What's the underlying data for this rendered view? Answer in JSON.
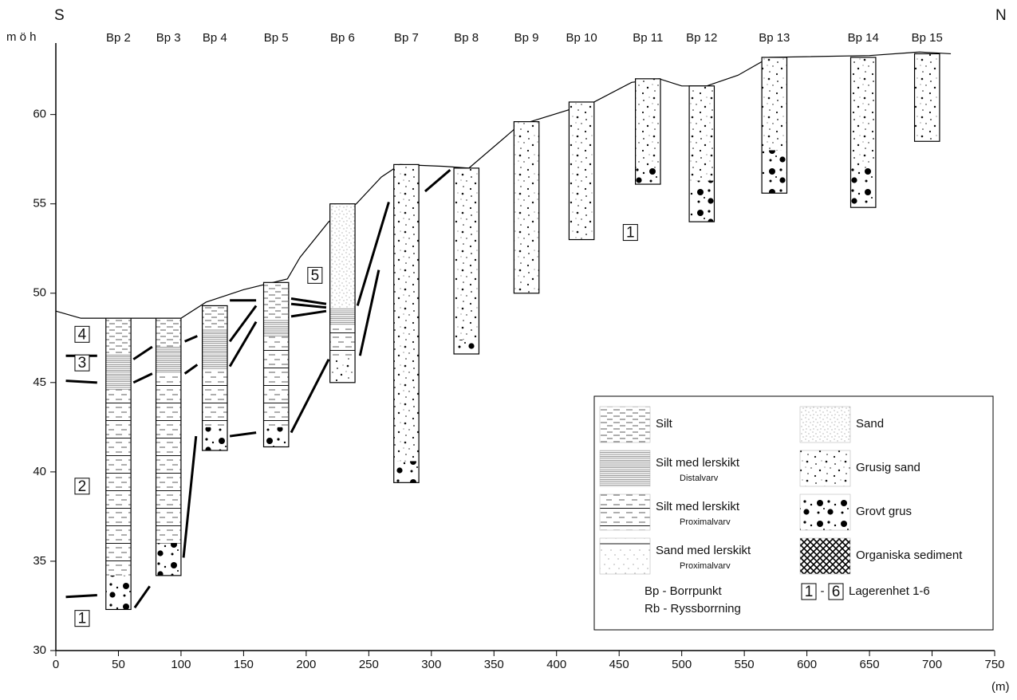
{
  "chart_data": {
    "type": "section",
    "y_label": "m ö h",
    "x_label": "(m)",
    "left_label": "S",
    "right_label": "N",
    "xlim": [
      0,
      750
    ],
    "xticks": [
      0,
      50,
      100,
      150,
      200,
      250,
      300,
      350,
      400,
      450,
      500,
      550,
      600,
      650,
      700,
      750
    ],
    "ylim": [
      30,
      64
    ],
    "yticks": [
      30,
      35,
      40,
      45,
      50,
      55,
      60
    ],
    "terrain": {
      "x": [
        0,
        20,
        100,
        120,
        150,
        185,
        195,
        218,
        240,
        260,
        275,
        310,
        330,
        370,
        430,
        460,
        482,
        500,
        520,
        545,
        570,
        650,
        690,
        715
      ],
      "y": [
        49,
        48.6,
        48.6,
        49.5,
        50.2,
        50.8,
        52,
        54,
        55,
        56.5,
        57.2,
        57.1,
        57,
        59.4,
        60.7,
        61.8,
        62,
        61.6,
        61.6,
        62.2,
        63.2,
        63.3,
        63.5,
        63.4
      ]
    },
    "boreholes": [
      {
        "label": "Bp 2",
        "x0": 40,
        "x1": 60,
        "top": 48.6,
        "bottom": 32.3,
        "layers": [
          {
            "top": 48.6,
            "bottom": 46.6,
            "pattern": 0
          },
          {
            "top": 46.6,
            "bottom": 44.6,
            "pattern": 1
          },
          {
            "top": 44.6,
            "bottom": 34.2,
            "pattern": 2
          },
          {
            "top": 34.2,
            "bottom": 32.3,
            "pattern": 6
          }
        ]
      },
      {
        "label": "Bp 3",
        "x0": 80,
        "x1": 100,
        "top": 48.6,
        "bottom": 34.2,
        "layers": [
          {
            "top": 48.6,
            "bottom": 47,
            "pattern": 0
          },
          {
            "top": 47,
            "bottom": 45.5,
            "pattern": 1
          },
          {
            "top": 45.5,
            "bottom": 36,
            "pattern": 2
          },
          {
            "top": 36,
            "bottom": 34.2,
            "pattern": 6
          }
        ]
      },
      {
        "label": "Bp 4",
        "x0": 117,
        "x1": 137,
        "top": 49.3,
        "bottom": 41.2,
        "layers": [
          {
            "top": 49.3,
            "bottom": 48,
            "pattern": 0
          },
          {
            "top": 48,
            "bottom": 45.7,
            "pattern": 1
          },
          {
            "top": 45.7,
            "bottom": 42.5,
            "pattern": 2
          },
          {
            "top": 42.5,
            "bottom": 41.2,
            "pattern": 6
          }
        ]
      },
      {
        "label": "Bp 5",
        "x0": 166,
        "x1": 186,
        "top": 50.6,
        "bottom": 41.4,
        "layers": [
          {
            "top": 50.6,
            "bottom": 48.5,
            "pattern": 0
          },
          {
            "top": 48.5,
            "bottom": 47.6,
            "pattern": 1
          },
          {
            "top": 47.6,
            "bottom": 42.5,
            "pattern": 2
          },
          {
            "top": 42.5,
            "bottom": 41.4,
            "pattern": 6
          }
        ]
      },
      {
        "label": "Bp 6",
        "x0": 219,
        "x1": 239,
        "top": 55,
        "bottom": 45,
        "layers": [
          {
            "top": 55,
            "bottom": 49.2,
            "pattern": 4
          },
          {
            "top": 49.2,
            "bottom": 48.2,
            "pattern": 1
          },
          {
            "top": 48.2,
            "bottom": 46.4,
            "pattern": 2
          },
          {
            "top": 46.4,
            "bottom": 45,
            "pattern": 5
          }
        ]
      },
      {
        "label": "Bp 7",
        "x0": 270,
        "x1": 290,
        "top": 57.2,
        "bottom": 39.4,
        "layers": [
          {
            "top": 57.2,
            "bottom": 40.6,
            "pattern": 5
          },
          {
            "top": 40.6,
            "bottom": 39.4,
            "pattern": 6
          }
        ]
      },
      {
        "label": "Bp 8",
        "x0": 318,
        "x1": 338,
        "top": 57,
        "bottom": 46.6,
        "layers": [
          {
            "top": 57,
            "bottom": 47.4,
            "pattern": 5
          },
          {
            "top": 47.4,
            "bottom": 46.6,
            "pattern": 6
          }
        ]
      },
      {
        "label": "Bp 9",
        "x0": 366,
        "x1": 386,
        "top": 59.6,
        "bottom": 50,
        "layers": [
          {
            "top": 59.6,
            "bottom": 50,
            "pattern": 5
          }
        ]
      },
      {
        "label": "Bp 10",
        "x0": 410,
        "x1": 430,
        "top": 60.7,
        "bottom": 53,
        "layers": [
          {
            "top": 60.7,
            "bottom": 53,
            "pattern": 5
          }
        ]
      },
      {
        "label": "Bp 11",
        "x0": 463,
        "x1": 483,
        "top": 62,
        "bottom": 56.1,
        "layers": [
          {
            "top": 62,
            "bottom": 57,
            "pattern": 5
          },
          {
            "top": 57,
            "bottom": 56.1,
            "pattern": 6
          }
        ]
      },
      {
        "label": "Bp 12",
        "x0": 506,
        "x1": 526,
        "top": 61.6,
        "bottom": 54,
        "layers": [
          {
            "top": 61.6,
            "bottom": 56.3,
            "pattern": 5
          },
          {
            "top": 56.3,
            "bottom": 54,
            "pattern": 6
          }
        ]
      },
      {
        "label": "Bp 13",
        "x0": 564,
        "x1": 584,
        "top": 63.2,
        "bottom": 55.6,
        "layers": [
          {
            "top": 63.2,
            "bottom": 58,
            "pattern": 5
          },
          {
            "top": 58,
            "bottom": 55.6,
            "pattern": 6
          }
        ]
      },
      {
        "label": "Bp 14",
        "x0": 635,
        "x1": 655,
        "top": 63.2,
        "bottom": 54.8,
        "layers": [
          {
            "top": 63.2,
            "bottom": 57,
            "pattern": 5
          },
          {
            "top": 57,
            "bottom": 54.8,
            "pattern": 6
          }
        ]
      },
      {
        "label": "Bp 15",
        "x0": 686,
        "x1": 706,
        "top": 63.4,
        "bottom": 58.5,
        "layers": [
          {
            "top": 63.4,
            "bottom": 58.5,
            "pattern": 5
          }
        ]
      }
    ],
    "correlation_lines": [
      {
        "x": [
          8,
          33
        ],
        "y": [
          46.5,
          46.5
        ]
      },
      {
        "x": [
          8,
          33
        ],
        "y": [
          45.1,
          45
        ]
      },
      {
        "x": [
          8,
          33
        ],
        "y": [
          33,
          33.1
        ]
      },
      {
        "x": [
          62,
          77
        ],
        "y": [
          46.3,
          47
        ]
      },
      {
        "x": [
          62,
          77
        ],
        "y": [
          45,
          45.5
        ]
      },
      {
        "x": [
          63,
          75
        ],
        "y": [
          32.4,
          33.6
        ]
      },
      {
        "x": [
          103,
          113
        ],
        "y": [
          47.3,
          47.6
        ]
      },
      {
        "x": [
          103,
          113
        ],
        "y": [
          45.5,
          46
        ]
      },
      {
        "x": [
          102,
          112
        ],
        "y": [
          35.2,
          42
        ]
      },
      {
        "x": [
          139,
          160
        ],
        "y": [
          45.9,
          48.4
        ]
      },
      {
        "x": [
          139,
          160
        ],
        "y": [
          47.3,
          49.3
        ]
      },
      {
        "x": [
          139,
          160
        ],
        "y": [
          49.6,
          49.6
        ]
      },
      {
        "x": [
          139,
          160
        ],
        "y": [
          42,
          42.2
        ]
      },
      {
        "x": [
          188,
          218
        ],
        "y": [
          42.2,
          46.3
        ]
      },
      {
        "x": [
          188,
          216
        ],
        "y": [
          49.7,
          49.4
        ]
      },
      {
        "x": [
          188,
          216
        ],
        "y": [
          49.4,
          49.2
        ]
      },
      {
        "x": [
          188,
          216
        ],
        "y": [
          48.7,
          49
        ]
      },
      {
        "x": [
          241,
          266
        ],
        "y": [
          49.3,
          55.1
        ]
      },
      {
        "x": [
          243,
          258
        ],
        "y": [
          46.5,
          51.3
        ]
      },
      {
        "x": [
          295,
          315
        ],
        "y": [
          55.7,
          56.9
        ]
      }
    ],
    "unit_labels": [
      {
        "label": "1",
        "x": 459,
        "y": 53.4
      },
      {
        "label": "5",
        "x": 207,
        "y": 51
      },
      {
        "label": "4",
        "x": 21,
        "y": 47.7
      },
      {
        "label": "3",
        "x": 21,
        "y": 46.1
      },
      {
        "label": "2",
        "x": 21,
        "y": 39.2
      },
      {
        "label": "1",
        "x": 21,
        "y": 31.8
      }
    ],
    "legend": {
      "items": [
        {
          "label": "Silt"
        },
        {
          "label": "Silt  med lerskikt",
          "note": "Distalvarv"
        },
        {
          "label": "Silt  med lerskikt",
          "note": "Proximalvarv"
        },
        {
          "label": "Sand med lerskikt",
          "note": "Proximalvarv"
        },
        {
          "label": "Sand"
        },
        {
          "label": "Grusig sand"
        },
        {
          "label": "Grovt grus"
        },
        {
          "label": "Organiska sediment"
        }
      ],
      "abbreviations": [
        "Bp - Borrpunkt",
        "Rb - Ryssborrning"
      ],
      "unit_key": {
        "from": "1",
        "dash": "-",
        "to": "6",
        "label": "Lagerenhet 1-6"
      }
    }
  }
}
